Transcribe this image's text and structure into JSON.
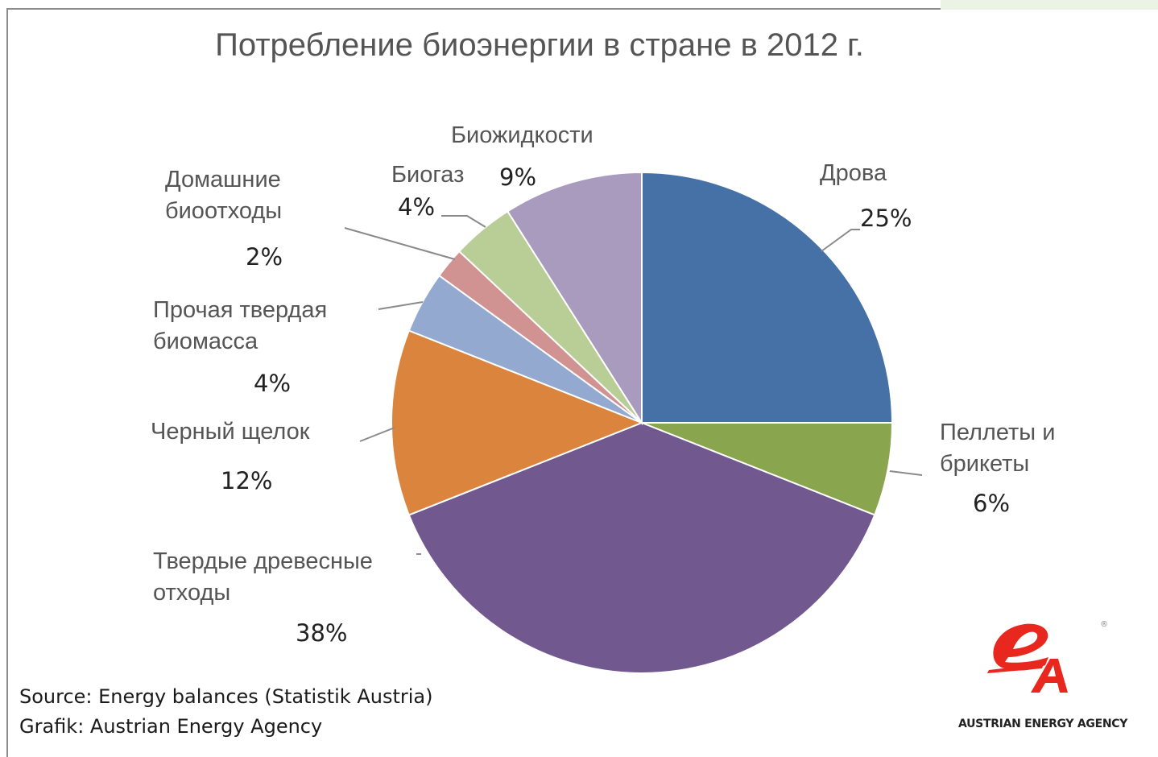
{
  "chart_data": {
    "type": "pie",
    "title": "Потребление биоэнергии в стране в 2012 г.",
    "slices": [
      {
        "label": "Дрова",
        "value": 25,
        "display": "25%",
        "color": "#4571a6"
      },
      {
        "label": "Пеллеты и брикеты",
        "value": 6,
        "display": "6%",
        "color": "#89a54e"
      },
      {
        "label": "Твердые древесные отходы",
        "value": 38,
        "display": "38%",
        "color": "#71588f"
      },
      {
        "label": "Черный щелок",
        "value": 12,
        "display": "12%",
        "color": "#db843d"
      },
      {
        "label": "Прочая твердая биомасса",
        "value": 4,
        "display": "4%",
        "color": "#93a9cf"
      },
      {
        "label": "Домашние биоотходы",
        "value": 2,
        "display": "2%",
        "color": "#d19392"
      },
      {
        "label": "Биогаз",
        "value": 4,
        "display": "4%",
        "color": "#b9cd96"
      },
      {
        "label": "Биожидкости",
        "value": 9,
        "display": "9%",
        "color": "#a99bbd"
      }
    ],
    "labels_ru": {
      "drova": "Дрова",
      "pellets_1": "Пеллеты и",
      "pellets_2": "брикеты",
      "wood_waste_1": "Твердые древесные",
      "wood_waste_2": "отходы",
      "black_liquor": "Черный щелок",
      "other_biomass_1": "Прочая твердая",
      "other_biomass_2": "биомасса",
      "household_1": "Домашние",
      "household_2": "биоотходы",
      "biogas": "Биогаз",
      "bioliquids": "Биожидкости"
    }
  },
  "footer": {
    "source": "Source: Energy balances (Statistik Austria)",
    "grafik": "Grafik: Austrian  Energy Agency"
  },
  "logo": {
    "text": "AUSTRIAN ENERGY AGENCY",
    "registered_mark": "®",
    "color": "#e8281e"
  }
}
